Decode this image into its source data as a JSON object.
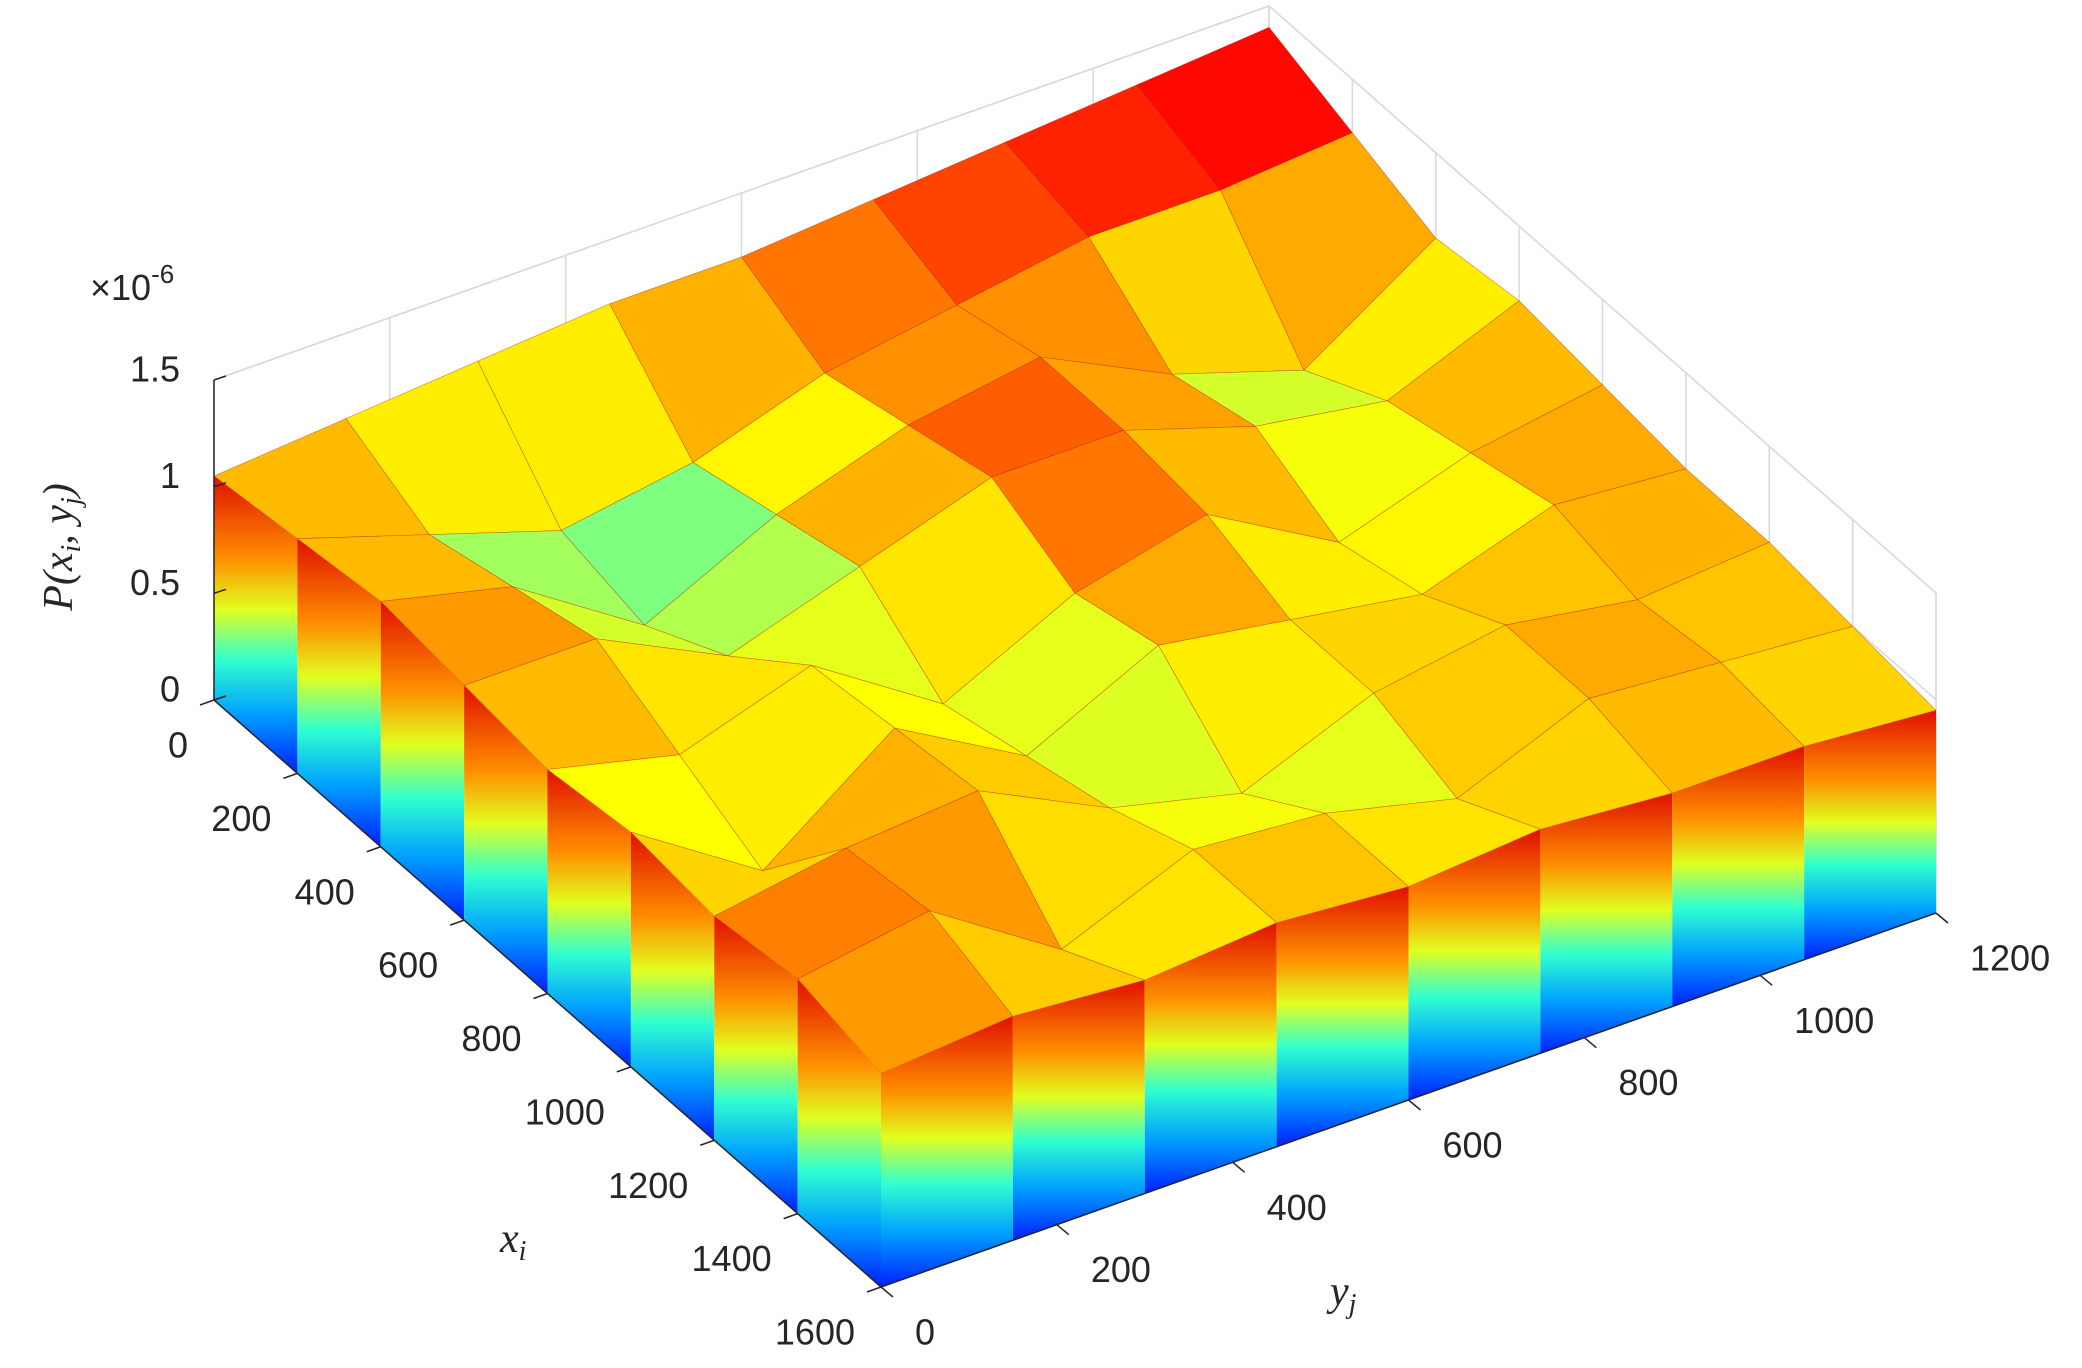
{
  "chart_data": {
    "type": "surface3d",
    "xlabel": [
      "x",
      "i"
    ],
    "ylabel": [
      "y",
      "j"
    ],
    "zlabel": [
      "P(x",
      "i",
      ", y",
      "j",
      ")"
    ],
    "z_exponent": [
      "×10",
      "-6"
    ],
    "x": [
      0,
      200,
      400,
      600,
      800,
      1000,
      1200,
      1400,
      1600
    ],
    "y": [
      0,
      150,
      300,
      450,
      600,
      750,
      900,
      1050,
      1200
    ],
    "z": [
      [
        1.05e-06,
        1.1e-06,
        1.15e-06,
        1.2e-06,
        1.2e-06,
        1.25e-06,
        1.3e-06,
        1.35e-06,
        1.4e-06
      ],
      [
        1.1e-06,
        9e-07,
        7e-07,
        8e-07,
        1e-06,
        1.1e-06,
        1.2e-06,
        1.2e-06,
        1.25e-06
      ],
      [
        1.15e-06,
        1e-06,
        6e-07,
        9e-07,
        1.1e-06,
        1.2e-06,
        9e-07,
        7e-07,
        1.1e-06
      ],
      [
        1.1e-06,
        1.1e-06,
        8e-07,
        1e-06,
        1.2e-06,
        1.2e-06,
        1e-06,
        9e-07,
        1.15e-06
      ],
      [
        1.05e-06,
        9e-07,
        1.1e-06,
        7e-07,
        1e-06,
        1.15e-06,
        8e-07,
        1e-06,
        1.1e-06
      ],
      [
        1.1e-06,
        7e-07,
        1.15e-06,
        8e-07,
        1.1e-06,
        1e-06,
        9e-07,
        1.1e-06,
        1.05e-06
      ],
      [
        1.05e-06,
        1.15e-06,
        1.2e-06,
        9e-07,
        7.5e-07,
        1e-06,
        1.1e-06,
        1e-06,
        1.05e-06
      ],
      [
        1.1e-06,
        1.2e-06,
        8e-07,
        1.05e-06,
        1e-06,
        8.5e-07,
        1.1e-06,
        1.05e-06,
        1e-06
      ],
      [
        1e-06,
        1.05e-06,
        1e-06,
        1.05e-06,
        1e-06,
        1.05e-06,
        1e-06,
        1e-06,
        9.5e-07
      ]
    ],
    "colormap": "jet",
    "xlim": [
      0,
      1600
    ],
    "xticks": [
      0,
      200,
      400,
      600,
      800,
      1000,
      1200,
      1400,
      1600
    ],
    "ylim": [
      0,
      1200
    ],
    "yticks": [
      0,
      200,
      400,
      600,
      800,
      1000,
      1200
    ],
    "zlim": [
      0,
      1.5e-06
    ],
    "zticks": [
      0,
      {
        "value": 5e-07,
        "label": "0.5"
      },
      {
        "value": 1e-06,
        "label": "1"
      },
      {
        "value": 1.5e-06,
        "label": "1.5"
      }
    ],
    "grid": true
  }
}
